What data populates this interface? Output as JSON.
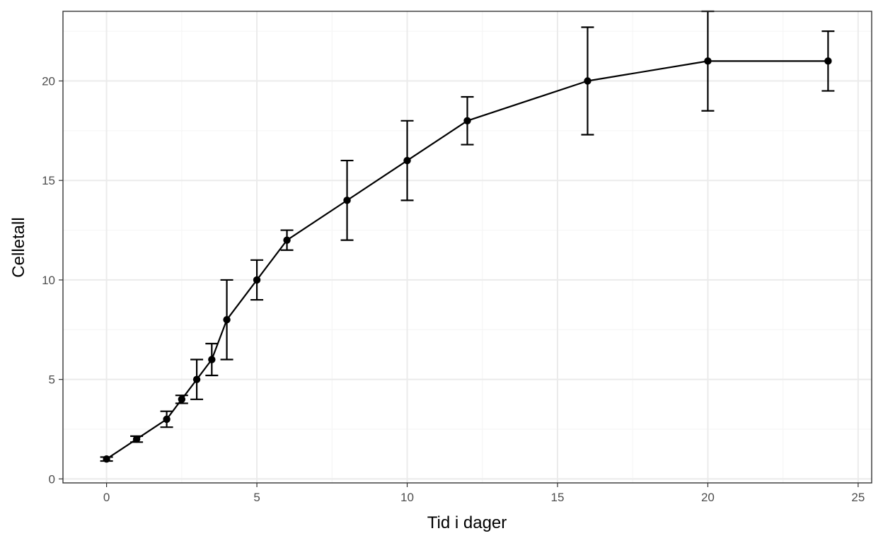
{
  "chart_data": {
    "type": "line",
    "title": "",
    "xlabel": "Tid i dager",
    "ylabel": "Celletall",
    "xlim": [
      -1.45,
      25.45
    ],
    "ylim": [
      -0.2,
      23.5
    ],
    "x_ticks": [
      0,
      5,
      10,
      15,
      20,
      25
    ],
    "x_tick_labels": [
      "0",
      "5",
      "10",
      "15",
      "20",
      "25"
    ],
    "y_ticks": [
      0,
      5,
      10,
      15,
      20
    ],
    "y_tick_labels": [
      "0",
      "5",
      "10",
      "15",
      "20"
    ],
    "grid": true,
    "legend": "none",
    "series": [
      {
        "x": [
          0,
          1,
          2,
          2.5,
          3,
          3.5,
          4,
          5,
          6,
          8,
          10,
          12,
          16,
          20,
          24
        ],
        "y": [
          1,
          2,
          3,
          4,
          5,
          6,
          8,
          10,
          12,
          14,
          16,
          18,
          20,
          21,
          21
        ],
        "y_lower": [
          0.9,
          1.85,
          2.6,
          3.8,
          4,
          5.2,
          6,
          9,
          11.5,
          12,
          14,
          16.8,
          17.3,
          18.5,
          19.5
        ],
        "y_upper": [
          1.1,
          2.15,
          3.4,
          4.2,
          6,
          6.8,
          10,
          11,
          12.5,
          16,
          18,
          19.2,
          22.7,
          23.5,
          22.5
        ]
      }
    ],
    "colors": {
      "line": "#000000",
      "panel_border": "#333333",
      "grid_major": "#ebebeb",
      "grid_minor": "#f5f5f5",
      "tick_text": "#4d4d4d",
      "title_text": "#000000"
    }
  }
}
